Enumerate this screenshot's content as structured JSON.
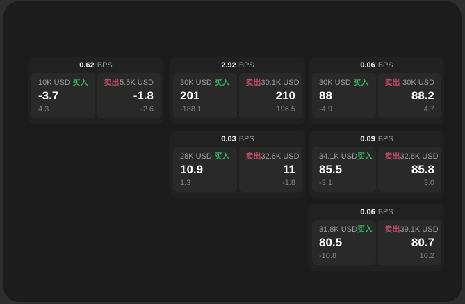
{
  "labels": {
    "bps_unit": "BPS",
    "buy": "买入",
    "sell": "卖出"
  },
  "colors": {
    "outer_background": "#2e2e2e",
    "panel_background": "#1c1c1c",
    "card_background": "#212121",
    "tile_background": "#292929",
    "text_primary": "#fafafa",
    "text_secondary": "#9c9c9c",
    "buy_green": "#36b456",
    "sell_red": "#c04a66"
  },
  "cards": [
    {
      "bps": "0.62",
      "buy": {
        "size": "10K USD",
        "price": "-3.7",
        "delta": "4.3"
      },
      "sell": {
        "size": "5.5K USD",
        "price": "-1.8",
        "delta": "-2.6"
      }
    },
    {
      "bps": "2.92",
      "buy": {
        "size": "30K USD",
        "price": "201",
        "delta": "-188.1"
      },
      "sell": {
        "size": "30.1K USD",
        "price": "210",
        "delta": "196.5"
      }
    },
    {
      "bps": "0.06",
      "buy": {
        "size": "30K USD",
        "price": "88",
        "delta": "-4.9"
      },
      "sell": {
        "size": "30K USD",
        "price": "88.2",
        "delta": "4.7"
      }
    },
    {
      "bps": "0.03",
      "buy": {
        "size": "28K USD",
        "price": "10.9",
        "delta": "1.3"
      },
      "sell": {
        "size": "32.6K USD",
        "price": "11",
        "delta": "-1.8"
      }
    },
    {
      "bps": "0.09",
      "buy": {
        "size": "34.1K USD",
        "price": "85.5",
        "delta": "-3.1"
      },
      "sell": {
        "size": "32.8K USD",
        "price": "85.8",
        "delta": "3.0"
      }
    },
    {
      "bps": "0.06",
      "buy": {
        "size": "31.8K USD",
        "price": "80.5",
        "delta": "-10.8"
      },
      "sell": {
        "size": "39.1K USD",
        "price": "80.7",
        "delta": "10.2"
      }
    }
  ]
}
